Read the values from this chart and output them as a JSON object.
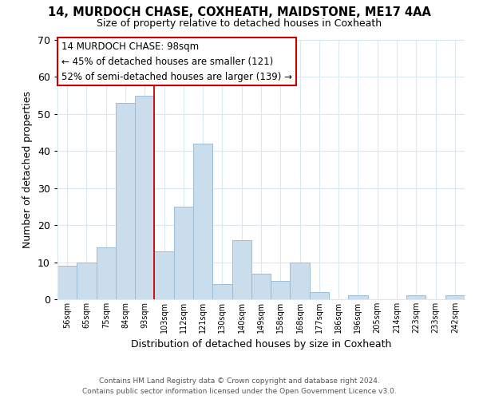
{
  "title": "14, MURDOCH CHASE, COXHEATH, MAIDSTONE, ME17 4AA",
  "subtitle": "Size of property relative to detached houses in Coxheath",
  "xlabel": "Distribution of detached houses by size in Coxheath",
  "ylabel": "Number of detached properties",
  "bar_labels": [
    "56sqm",
    "65sqm",
    "75sqm",
    "84sqm",
    "93sqm",
    "103sqm",
    "112sqm",
    "121sqm",
    "130sqm",
    "140sqm",
    "149sqm",
    "158sqm",
    "168sqm",
    "177sqm",
    "186sqm",
    "196sqm",
    "205sqm",
    "214sqm",
    "223sqm",
    "233sqm",
    "242sqm"
  ],
  "bar_values": [
    9,
    10,
    14,
    53,
    55,
    13,
    25,
    42,
    4,
    16,
    7,
    5,
    10,
    2,
    0,
    1,
    0,
    0,
    1,
    0,
    1
  ],
  "bar_color": "#c9dded",
  "bar_edge_color": "#9bbdd8",
  "highlight_line_index": 5,
  "highlight_line_color": "#cc0000",
  "ylim": [
    0,
    70
  ],
  "yticks": [
    0,
    10,
    20,
    30,
    40,
    50,
    60,
    70
  ],
  "annotation_title": "14 MURDOCH CHASE: 98sqm",
  "annotation_line1": "← 45% of detached houses are smaller (121)",
  "annotation_line2": "52% of semi-detached houses are larger (139) →",
  "annotation_box_facecolor": "#ffffff",
  "annotation_box_edgecolor": "#cc0000",
  "footer_line1": "Contains HM Land Registry data © Crown copyright and database right 2024.",
  "footer_line2": "Contains public sector information licensed under the Open Government Licence v3.0.",
  "background_color": "#ffffff",
  "grid_color": "#dce8f0"
}
